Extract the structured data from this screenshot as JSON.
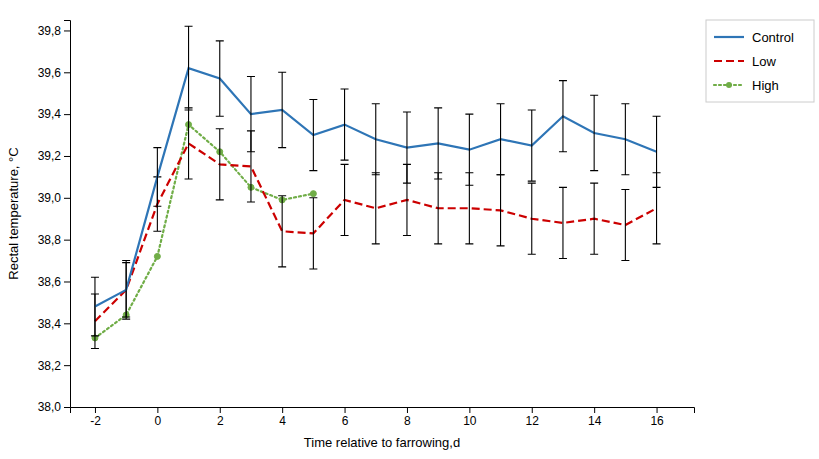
{
  "chart_data": {
    "type": "line",
    "x_label": "Time relative to farrowing,d",
    "y_label": "Rectal temperature, °C",
    "series": [
      {
        "name": "Control",
        "color": "#2E75B6",
        "line_style": "solid",
        "x": [
          -2,
          -1,
          0,
          1,
          2,
          3,
          4,
          5,
          6,
          7,
          8,
          9,
          10,
          11,
          12,
          13,
          14,
          15,
          16
        ],
        "values": [
          38.48,
          38.56,
          39.1,
          39.62,
          39.57,
          39.4,
          39.42,
          39.3,
          39.35,
          39.28,
          39.24,
          39.26,
          39.23,
          39.28,
          39.25,
          39.39,
          39.31,
          39.28,
          39.22
        ],
        "errors": [
          0.14,
          0.14,
          0.14,
          0.2,
          0.18,
          0.18,
          0.18,
          0.17,
          0.17,
          0.17,
          0.17,
          0.17,
          0.17,
          0.17,
          0.17,
          0.17,
          0.18,
          0.17,
          0.17
        ]
      },
      {
        "name": "Low",
        "color": "#CC0000",
        "line_style": "dashed",
        "x": [
          -2,
          -1,
          0,
          1,
          2,
          3,
          4,
          5,
          6,
          7,
          8,
          9,
          10,
          11,
          12,
          13,
          14,
          15,
          16
        ],
        "values": [
          38.41,
          38.56,
          38.97,
          39.26,
          39.16,
          39.15,
          38.84,
          38.83,
          38.99,
          38.95,
          38.99,
          38.95,
          38.95,
          38.94,
          38.9,
          38.88,
          38.9,
          38.87,
          38.95
        ],
        "errors": [
          0.13,
          0.13,
          0.13,
          0.17,
          0.17,
          0.17,
          0.17,
          0.17,
          0.17,
          0.17,
          0.17,
          0.17,
          0.17,
          0.17,
          0.17,
          0.17,
          0.17,
          0.17,
          0.17
        ]
      },
      {
        "name": "High",
        "color": "#70AD47",
        "line_style": "dotted",
        "marker": "circle",
        "x": [
          -2,
          -1,
          0,
          1,
          2,
          3,
          4,
          5
        ],
        "values": [
          38.33,
          38.44,
          38.72,
          39.35,
          39.22,
          39.05,
          38.99,
          39.02
        ]
      }
    ],
    "xlim": [
      -2.8,
      17.2
    ],
    "xticks": [
      -2,
      0,
      2,
      4,
      6,
      8,
      10,
      12,
      14,
      16
    ],
    "ylim": [
      38.0,
      39.85
    ],
    "yticks": [
      {
        "value": 38.0,
        "label": "38,0"
      },
      {
        "value": 38.2,
        "label": "38,2"
      },
      {
        "value": 38.4,
        "label": "38,4"
      },
      {
        "value": 38.6,
        "label": "38,6"
      },
      {
        "value": 38.8,
        "label": "38,8"
      },
      {
        "value": 39.0,
        "label": "39,0"
      },
      {
        "value": 39.2,
        "label": "39,2"
      },
      {
        "value": 39.4,
        "label": "39,4"
      },
      {
        "value": 39.6,
        "label": "39,6"
      },
      {
        "value": 39.8,
        "label": "39,8"
      }
    ],
    "grid": false,
    "legend": "upper right"
  }
}
